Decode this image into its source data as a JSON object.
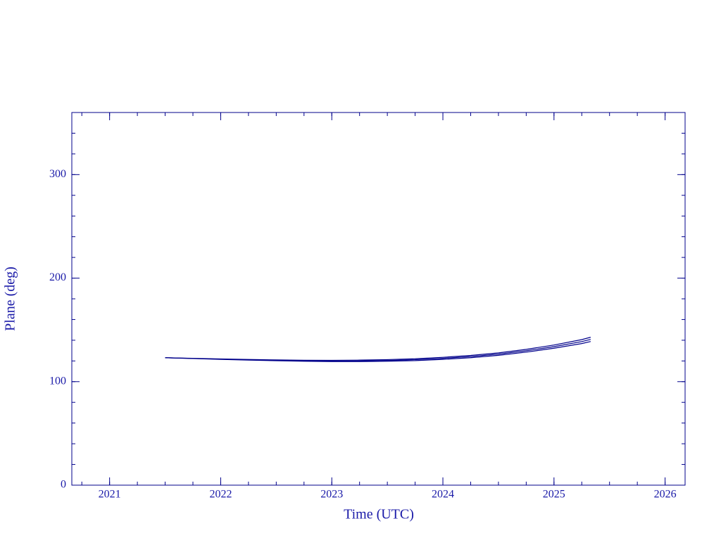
{
  "chart_data": {
    "type": "line",
    "xlabel": "Time (UTC)",
    "ylabel": "Plane (deg)",
    "x": [
      2021.5,
      2021.75,
      2022,
      2022.25,
      2022.5,
      2022.75,
      2023,
      2023.25,
      2023.5,
      2023.75,
      2024,
      2024.25,
      2024.5,
      2024.75,
      2025,
      2025.25,
      2025.33
    ],
    "series": [
      {
        "color": "#00008b",
        "values": [
          123.1,
          122.5,
          121.9,
          121.4,
          121.0,
          120.7,
          120.6,
          120.8,
          121.3,
          122.1,
          123.5,
          125.3,
          127.8,
          131.2,
          135.4,
          140.6,
          142.9
        ]
      },
      {
        "color": "#00008b",
        "values": [
          123.1,
          122.4,
          121.7,
          121.1,
          120.6,
          120.2,
          120.0,
          120.1,
          120.5,
          121.2,
          122.5,
          124.2,
          126.6,
          129.8,
          133.8,
          138.7,
          140.8
        ]
      },
      {
        "color": "#00008b",
        "values": [
          123.1,
          122.3,
          121.5,
          120.8,
          120.2,
          119.7,
          119.4,
          119.4,
          119.7,
          120.3,
          121.5,
          123.1,
          125.4,
          128.5,
          132.3,
          136.8,
          138.8
        ]
      }
    ],
    "xlim": [
      2020.66,
      2026.18
    ],
    "xticks": [
      2021,
      2022,
      2023,
      2024,
      2025,
      2026
    ],
    "ylim": [
      0,
      360
    ],
    "yticks": [
      0,
      100,
      200,
      300
    ],
    "axis_color": "#00008b"
  }
}
